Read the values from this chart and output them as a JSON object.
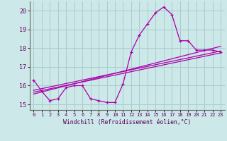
{
  "title": "",
  "xlabel": "Windchill (Refroidissement éolien,°C)",
  "ylabel": "",
  "background_color": "#cce8e8",
  "grid_color": "#aacccc",
  "line_color": "#aa00aa",
  "xlim": [
    -0.5,
    23.5
  ],
  "ylim": [
    14.7,
    20.5
  ],
  "xticks": [
    0,
    1,
    2,
    3,
    4,
    5,
    6,
    7,
    8,
    9,
    10,
    11,
    12,
    13,
    14,
    15,
    16,
    17,
    18,
    19,
    20,
    21,
    22,
    23
  ],
  "yticks": [
    15,
    16,
    17,
    18,
    19,
    20
  ],
  "line1_x": [
    0,
    1,
    2,
    3,
    4,
    5,
    6,
    7,
    8,
    9,
    10,
    11,
    12,
    13,
    14,
    15,
    16,
    17,
    18,
    19,
    20,
    21,
    22,
    23
  ],
  "line1_y": [
    16.3,
    15.7,
    15.2,
    15.3,
    15.9,
    16.0,
    16.0,
    15.3,
    15.2,
    15.1,
    15.1,
    16.1,
    17.8,
    18.7,
    19.3,
    19.9,
    20.2,
    19.8,
    18.4,
    18.4,
    17.9,
    17.9,
    17.9,
    17.8
  ],
  "line2_x": [
    0,
    23
  ],
  "line2_y": [
    15.65,
    17.75
  ],
  "line3_x": [
    0,
    23
  ],
  "line3_y": [
    15.75,
    17.85
  ],
  "line4_x": [
    0,
    23
  ],
  "line4_y": [
    15.55,
    18.1
  ]
}
